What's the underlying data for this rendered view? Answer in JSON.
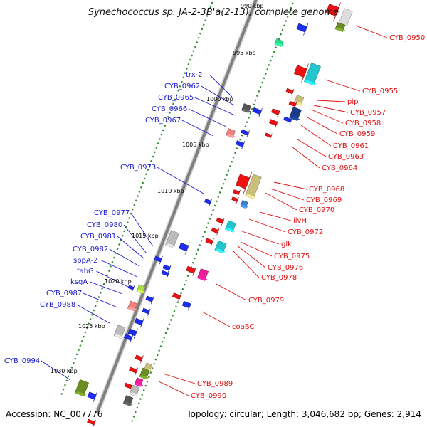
{
  "title": "Synechococcus sp. JA-2-3B'a(2-13), complete genome",
  "accession": "Accession: NC_007776",
  "topology": "Topology: circular; Length: 3,046,682 bp; Genes: 2,914",
  "colors": {
    "backbone": "#808080",
    "minor_tick": "#2e8b2e",
    "left_label": "#1a1acc",
    "right_label": "#dd1111",
    "cds_forward": "#1e2ef0",
    "cds_reverse": "#ee1111"
  },
  "kbp_ticks": [
    "990 kbp",
    "995 kbp",
    "1000 kbp",
    "1005 kbp",
    "1010 kbp",
    "1015 kbp",
    "1020 kbp",
    "1025 kbp",
    "1030 kbp"
  ],
  "left_labels": [
    "trx-2",
    "CYB_0962",
    "CYB_0965",
    "CYB_0966",
    "CYB_0967",
    "CYB_0973",
    "CYB_0977",
    "CYB_0980",
    "CYB_0981",
    "CYB_0982",
    "sppA-2",
    "fabG",
    "ksgA",
    "CYB_0987",
    "CYB_0988",
    "CYB_0994"
  ],
  "right_labels": [
    "CYB_0950",
    "CYB_0955",
    "pip",
    "CYB_0957",
    "CYB_0958",
    "CYB_0959",
    "CYB_0961",
    "CYB_0963",
    "CYB_0964",
    "CYB_0968",
    "CYB_0969",
    "CYB_0970",
    "ilvH",
    "CYB_0972",
    "glk",
    "CYB_0975",
    "CYB_0976",
    "CYB_0978",
    "CYB_0979",
    "coaBC",
    "CYB_0989",
    "CYB_0990"
  ]
}
